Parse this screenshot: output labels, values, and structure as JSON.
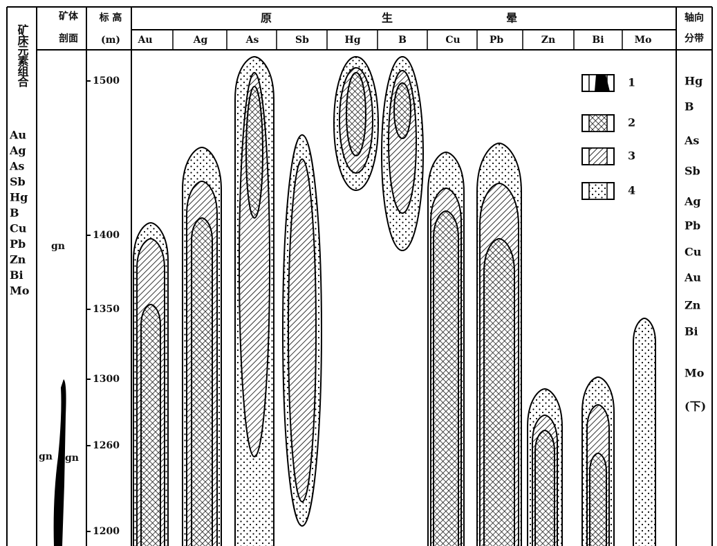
{
  "left_column": {
    "title": "矿床元素组合",
    "elements": [
      "Au",
      "Ag",
      "As",
      "Sb",
      "Hg",
      "B",
      "Cu",
      "Pb",
      "Zn",
      "Bi",
      "Mo"
    ]
  },
  "profile_column": {
    "title_lines": [
      "矿体",
      "剖面"
    ],
    "labels": [
      "gn",
      "gn",
      "gn"
    ]
  },
  "elevation_column": {
    "title_lines": [
      "标 高",
      "(m)"
    ],
    "ticks": [
      "1500",
      "1400",
      "1350",
      "1300",
      "1260",
      "1200"
    ]
  },
  "main": {
    "title_chars": [
      "原",
      "生",
      "晕"
    ],
    "elements": [
      "Au",
      "Ag",
      "As",
      "Sb",
      "Hg",
      "B",
      "Cu",
      "Pb",
      "Zn",
      "Bi",
      "Mo"
    ]
  },
  "legend": [
    "1",
    "2",
    "3",
    "4"
  ],
  "right_column": {
    "title_lines": [
      "轴向",
      "分带"
    ],
    "elements": [
      "Hg",
      "B",
      "As",
      "Sb",
      "Ag",
      "Pb",
      "Cu",
      "Au",
      "Zn",
      "Bi",
      "Mo",
      "(下)"
    ]
  }
}
